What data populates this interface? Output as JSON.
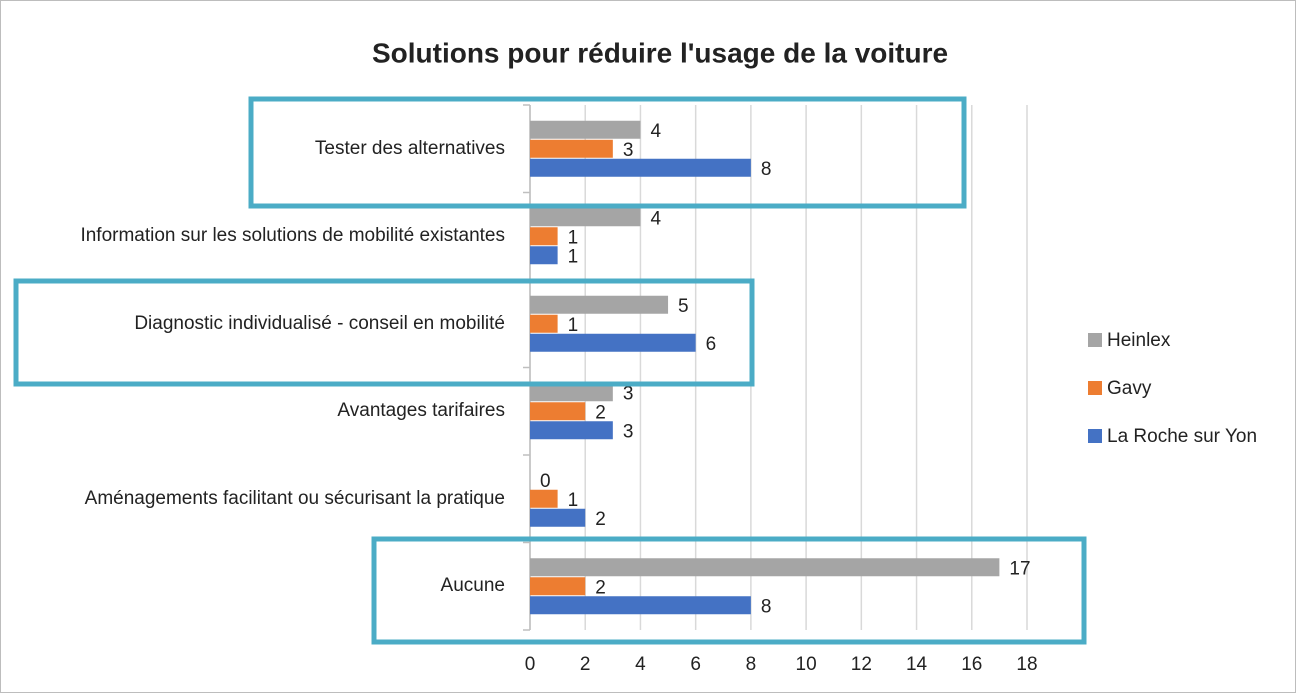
{
  "chart_data": {
    "type": "hbar",
    "title": "Solutions pour réduire l'usage de la voiture",
    "categories": [
      "Tester des alternatives",
      "Information sur les solutions de mobilité existantes",
      "Diagnostic individualisé - conseil en mobilité",
      "Avantages tarifaires",
      "Aménagements facilitant ou sécurisant la pratique",
      "Aucune"
    ],
    "series": [
      {
        "name": "Heinlex",
        "color": "#a5a5a5",
        "values": [
          4,
          4,
          5,
          3,
          0,
          17
        ]
      },
      {
        "name": "Gavy",
        "color": "#ed7d31",
        "values": [
          3,
          1,
          1,
          2,
          1,
          2
        ]
      },
      {
        "name": "La Roche sur Yon",
        "color": "#4472c4",
        "values": [
          8,
          1,
          6,
          3,
          2,
          8
        ]
      }
    ],
    "xlim": [
      0,
      18
    ],
    "xticks": [
      0,
      2,
      4,
      6,
      8,
      10,
      12,
      14,
      16,
      18
    ],
    "grid": true,
    "legend": "right"
  }
}
